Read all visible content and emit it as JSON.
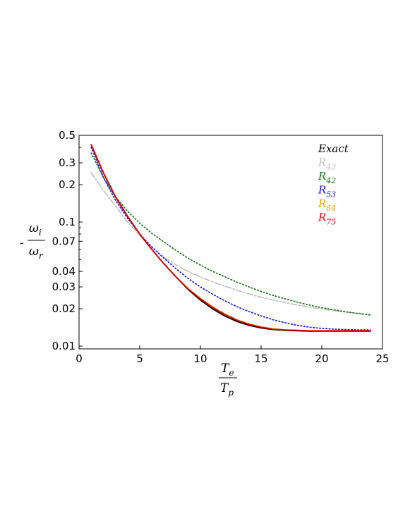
{
  "chart_data": {
    "type": "line",
    "title": "",
    "xlabel": {
      "numerator": "T",
      "numerator_sub": "e",
      "denominator": "T",
      "denominator_sub": "p"
    },
    "ylabel": {
      "prefix": "-",
      "numerator": "ω",
      "numerator_sub": "i",
      "denominator": "ω",
      "denominator_sub": "r"
    },
    "xlim": [
      0,
      25
    ],
    "ylim": [
      0.0095,
      0.5
    ],
    "yscale": "log",
    "grid": false,
    "legend_position": "top-right",
    "x_ticks": [
      0,
      5,
      10,
      15,
      20,
      25
    ],
    "x_tick_labels": [
      "0",
      "5",
      "10",
      "15",
      "20",
      "25"
    ],
    "y_ticks": [
      0.01,
      0.02,
      0.03,
      0.04,
      0.07,
      0.1,
      0.2,
      0.3,
      0.5
    ],
    "y_tick_labels": [
      "0.01",
      "0.02",
      "0.03",
      "0.04",
      "0.07",
      "0.1",
      "0.2",
      "0.3",
      "0.5"
    ],
    "y_minor_ticks": [
      0.05,
      0.06,
      0.08,
      0.09,
      0.4
    ],
    "series": [
      {
        "name": "Exact",
        "main": "Exact",
        "sub": "",
        "color": "#000000",
        "style": "solid",
        "x": [
          1,
          2,
          3,
          4,
          5,
          6,
          7,
          8,
          9,
          10,
          11,
          12,
          13,
          14,
          15,
          16,
          17,
          18,
          19,
          20,
          21,
          22,
          23,
          24
        ],
        "y": [
          0.42,
          0.25,
          0.16,
          0.111,
          0.08,
          0.06,
          0.046,
          0.036,
          0.0285,
          0.0235,
          0.02,
          0.0175,
          0.0158,
          0.0147,
          0.014,
          0.0136,
          0.0134,
          0.0133,
          0.0132,
          0.0132,
          0.0132,
          0.0132,
          0.0132,
          0.0132
        ]
      },
      {
        "name": "R43",
        "main": "R",
        "sub": "43",
        "color": "#c0c0c0",
        "style": "dashdot",
        "x": [
          1,
          2,
          3,
          4,
          5,
          6,
          7,
          8,
          9,
          10,
          11,
          12,
          13,
          14,
          15,
          16,
          17,
          18,
          19,
          20,
          21,
          22,
          23,
          24
        ],
        "y": [
          0.25,
          0.18,
          0.135,
          0.1,
          0.078,
          0.062,
          0.052,
          0.045,
          0.04,
          0.036,
          0.033,
          0.0305,
          0.0283,
          0.0263,
          0.0248,
          0.0235,
          0.0224,
          0.0214,
          0.0206,
          0.0199,
          0.0193,
          0.0188,
          0.0184,
          0.018
        ]
      },
      {
        "name": "R42",
        "main": "R",
        "sub": "42",
        "color": "#1a7a1a",
        "style": "dotted",
        "x": [
          1,
          2,
          3,
          4,
          5,
          6,
          7,
          8,
          9,
          10,
          11,
          12,
          13,
          14,
          15,
          16,
          17,
          18,
          19,
          20,
          21,
          22,
          23,
          24
        ],
        "y": [
          0.36,
          0.23,
          0.16,
          0.122,
          0.098,
          0.081,
          0.069,
          0.059,
          0.051,
          0.045,
          0.04,
          0.0362,
          0.0328,
          0.03,
          0.0276,
          0.0256,
          0.024,
          0.0226,
          0.0214,
          0.0204,
          0.0196,
          0.0189,
          0.0183,
          0.0178
        ]
      },
      {
        "name": "R53",
        "main": "R",
        "sub": "53",
        "color": "#1a1ae0",
        "style": "dotted",
        "x": [
          1,
          2,
          3,
          4,
          5,
          6,
          7,
          8,
          9,
          10,
          11,
          12,
          13,
          14,
          15,
          16,
          17,
          18,
          19,
          20,
          21,
          22,
          23,
          24
        ],
        "y": [
          0.4,
          0.23,
          0.15,
          0.107,
          0.08,
          0.063,
          0.051,
          0.042,
          0.035,
          0.03,
          0.0262,
          0.0232,
          0.0208,
          0.019,
          0.0175,
          0.0163,
          0.0154,
          0.0147,
          0.0142,
          0.0139,
          0.0137,
          0.0136,
          0.0135,
          0.0135
        ]
      },
      {
        "name": "R64",
        "main": "R",
        "sub": "64",
        "color": "#f0a000",
        "style": "dashdot",
        "x": [
          1,
          2,
          3,
          4,
          5,
          6,
          7,
          8,
          9,
          10,
          11,
          12,
          13,
          14,
          15,
          16,
          17,
          18,
          19,
          20,
          21,
          22,
          23,
          24
        ],
        "y": [
          0.42,
          0.25,
          0.16,
          0.111,
          0.08,
          0.06,
          0.046,
          0.036,
          0.029,
          0.0243,
          0.0208,
          0.0182,
          0.0163,
          0.0151,
          0.0143,
          0.0138,
          0.0135,
          0.0134,
          0.0133,
          0.0133,
          0.0133,
          0.0133,
          0.0133,
          0.0133
        ]
      },
      {
        "name": "R75",
        "main": "R",
        "sub": "75",
        "color": "#e00000",
        "style": "solid",
        "x": [
          1,
          2,
          3,
          4,
          5,
          6,
          7,
          8,
          9,
          10,
          11,
          12,
          13,
          14,
          15,
          16,
          17,
          18,
          19,
          20,
          21,
          22,
          23,
          24
        ],
        "y": [
          0.42,
          0.25,
          0.16,
          0.111,
          0.08,
          0.06,
          0.046,
          0.036,
          0.0288,
          0.024,
          0.0205,
          0.018,
          0.0162,
          0.015,
          0.0142,
          0.0137,
          0.0135,
          0.0134,
          0.0133,
          0.0133,
          0.0133,
          0.0133,
          0.0133,
          0.0133
        ]
      }
    ]
  }
}
